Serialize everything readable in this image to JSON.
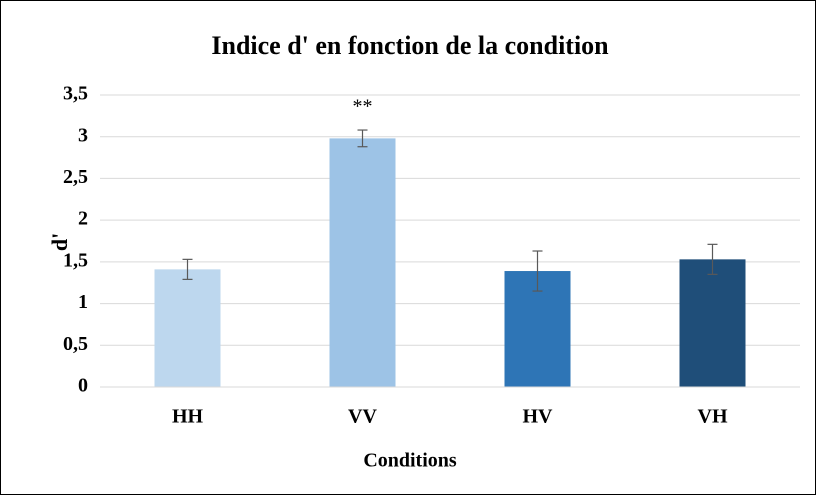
{
  "chart_data": {
    "type": "bar",
    "title": "Indice d' en fonction de la condition",
    "xlabel": "Conditions",
    "ylabel": "d'",
    "categories": [
      "HH",
      "VV",
      "HV",
      "VH"
    ],
    "values": [
      1.41,
      2.98,
      1.39,
      1.53
    ],
    "errors": [
      0.12,
      0.1,
      0.24,
      0.18
    ],
    "colors": [
      "#bdd7ee",
      "#9dc3e6",
      "#2e75b6",
      "#1f4e79"
    ],
    "annotations": [
      {
        "text": "**",
        "category": "VV"
      }
    ],
    "ylim": [
      0,
      3.5
    ],
    "yticks": [
      0,
      {
        "value": 0.5,
        "label": "0,5"
      },
      1,
      {
        "value": 1.5,
        "label": "1,5"
      },
      2,
      {
        "value": 2.5,
        "label": "2,5"
      },
      3,
      {
        "value": 3.5,
        "label": "3,5"
      }
    ],
    "grid": true
  }
}
